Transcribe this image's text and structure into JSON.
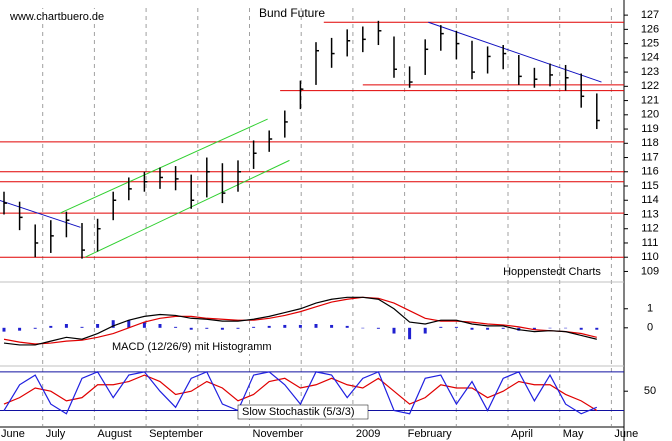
{
  "chart_data": {
    "type": "ohlc",
    "title": "Bund Future",
    "site": "www.chartbuero.de",
    "credit": "Hoppenstedt Charts",
    "categories": [
      "June",
      "July",
      "August",
      "September",
      null,
      "November",
      null,
      "2009",
      "February",
      null,
      "April",
      "May",
      "June"
    ],
    "grid": true,
    "color": "#000000",
    "close": [
      113.8,
      112.8,
      111,
      111.5,
      112.6,
      110.5,
      112,
      114,
      114.8,
      115.3,
      115.6,
      115.5,
      114,
      116,
      114.5,
      116,
      117.3,
      118.3,
      119.5,
      121.8,
      124.5,
      124.3,
      125.2,
      125.3,
      125.9,
      123.2,
      122.3,
      124.6,
      125.7,
      125,
      123,
      124.1,
      124.3,
      122.7,
      122.5,
      122.8,
      122.6,
      121.3,
      119.6
    ],
    "high": [
      114.6,
      113.9,
      112.3,
      112.6,
      113.2,
      112.4,
      112.7,
      114.6,
      115.6,
      116,
      116.3,
      116.4,
      115.8,
      117,
      116.6,
      116.8,
      118.2,
      118.9,
      120.3,
      122.4,
      125.1,
      125.4,
      126,
      126.2,
      126.6,
      125.5,
      123.4,
      125.3,
      126.3,
      125.9,
      125.2,
      124.8,
      124.9,
      124.2,
      123.3,
      123.6,
      123.5,
      122.9,
      121.5
    ],
    "low": [
      113,
      111.9,
      110,
      110.3,
      111.4,
      109.9,
      110.4,
      112.6,
      114,
      114.6,
      114.8,
      114.7,
      113.4,
      114.2,
      113.8,
      114.6,
      116.2,
      117.4,
      118.4,
      120.4,
      122.1,
      123.3,
      124.1,
      124.4,
      124.9,
      122.6,
      121.9,
      122.8,
      124.5,
      123.9,
      122.5,
      122.9,
      123.2,
      122.1,
      121.9,
      122,
      121.7,
      120.5,
      119
    ],
    "ylim": [
      108.4,
      127.5
    ],
    "yticks": [
      109,
      110,
      111,
      112,
      113,
      114,
      115,
      116,
      117,
      118,
      119,
      120,
      121,
      122,
      123,
      124,
      125,
      126,
      127
    ],
    "levels": [
      {
        "value": 126.5,
        "from": 20.5,
        "color": "#e00000"
      },
      {
        "value": 122.1,
        "from": 23,
        "color": "#e00000"
      },
      {
        "value": 121.7,
        "from": 17.7,
        "color": "#e00000"
      },
      {
        "value": 118.1,
        "from": null,
        "color": "#e00000"
      },
      {
        "value": 116,
        "from": null,
        "color": "#e00000"
      },
      {
        "value": 115.3,
        "from": null,
        "color": "#e00000"
      },
      {
        "value": 113.1,
        "from": null,
        "color": "#e00000"
      },
      {
        "value": 110,
        "from": null,
        "color": "#e00000"
      }
    ],
    "trendlines": [
      {
        "color": "#1010c0",
        "x": [
          -0.3,
          4.9
        ],
        "y": [
          114.0,
          112.1
        ]
      },
      {
        "color": "#30d030",
        "x": [
          3.6,
          16.9
        ],
        "y": [
          113.1,
          119.7
        ]
      },
      {
        "color": "#30d030",
        "x": [
          5.2,
          18.3
        ],
        "y": [
          110.0,
          116.8
        ]
      },
      {
        "color": "#1010c0",
        "x": [
          27.2,
          38.3
        ],
        "y": [
          126.5,
          122.3
        ]
      }
    ],
    "macd": {
      "label": "MACD (12/26/9) mit Histogramm",
      "ylim": [
        -1.9,
        2.3
      ],
      "yticks": [
        1,
        0
      ],
      "macd": {
        "color": "#000000",
        "values": [
          -0.8,
          -0.9,
          -0.9,
          -0.7,
          -0.5,
          -0.6,
          -0.3,
          0.1,
          0.4,
          0.6,
          0.7,
          0.65,
          0.5,
          0.45,
          0.35,
          0.35,
          0.45,
          0.6,
          0.8,
          1.0,
          1.3,
          1.5,
          1.6,
          1.6,
          1.5,
          1.0,
          0.3,
          0.2,
          0.4,
          0.4,
          0.2,
          0.1,
          0.1,
          -0.1,
          -0.2,
          -0.15,
          -0.2,
          -0.4,
          -0.6
        ]
      },
      "signal": {
        "color": "#e00000",
        "values": [
          -0.6,
          -0.75,
          -0.85,
          -0.8,
          -0.7,
          -0.65,
          -0.5,
          -0.3,
          0,
          0.3,
          0.5,
          0.6,
          0.6,
          0.5,
          0.45,
          0.4,
          0.4,
          0.5,
          0.65,
          0.85,
          1.1,
          1.35,
          1.5,
          1.6,
          1.55,
          1.3,
          0.9,
          0.5,
          0.35,
          0.35,
          0.3,
          0.2,
          0.15,
          0.05,
          -0.1,
          -0.15,
          -0.2,
          -0.3,
          -0.5
        ]
      },
      "histogram": {
        "color": "#2020d0",
        "values": [
          -0.2,
          -0.15,
          -0.05,
          0.1,
          0.2,
          0.05,
          0.2,
          0.4,
          0.4,
          0.3,
          0.2,
          0.05,
          -0.1,
          -0.05,
          -0.1,
          -0.05,
          0.05,
          0.1,
          0.15,
          0.15,
          0.2,
          0.15,
          0.1,
          0,
          -0.05,
          -0.3,
          -0.6,
          -0.3,
          0.05,
          0.05,
          -0.1,
          -0.1,
          -0.05,
          -0.15,
          -0.1,
          0,
          0,
          -0.1,
          -0.1
        ]
      }
    },
    "stochastic": {
      "label": "Slow Stochastik (5/3/3)",
      "ylim": [
        -4,
        86
      ],
      "yticks": [
        50
      ],
      "levels": [
        80,
        20
      ],
      "level_color": "#1010a0",
      "k": {
        "color": "#2020e0",
        "values": [
          20,
          60,
          75,
          30,
          15,
          70,
          80,
          40,
          75,
          80,
          50,
          25,
          70,
          80,
          30,
          20,
          75,
          80,
          60,
          30,
          80,
          75,
          40,
          70,
          80,
          20,
          15,
          70,
          75,
          30,
          65,
          20,
          70,
          80,
          35,
          75,
          30,
          15,
          25
        ]
      },
      "d": {
        "color": "#e00000",
        "values": [
          30,
          40,
          55,
          50,
          35,
          40,
          60,
          60,
          65,
          75,
          65,
          45,
          50,
          65,
          55,
          35,
          45,
          65,
          70,
          55,
          60,
          70,
          60,
          55,
          70,
          50,
          30,
          40,
          60,
          55,
          55,
          40,
          50,
          65,
          60,
          60,
          45,
          35,
          20
        ]
      }
    }
  }
}
